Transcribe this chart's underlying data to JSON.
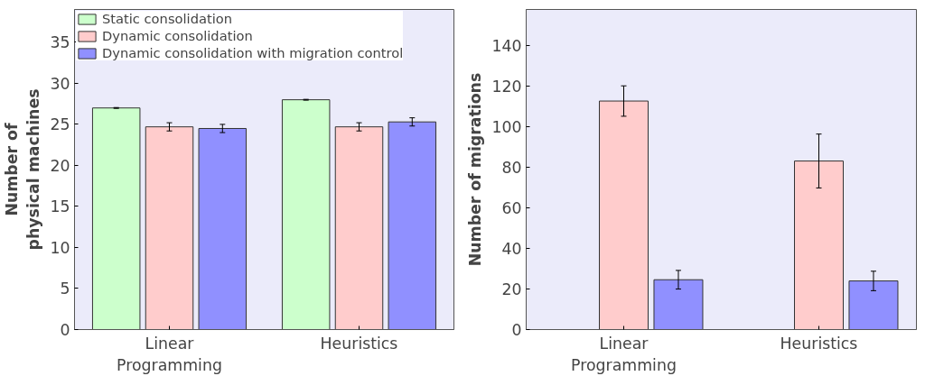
{
  "chart_data": [
    {
      "type": "bar",
      "ylabel": "Number of\nphysical machines",
      "categories": [
        "Linear\nProgramming",
        "Heuristics"
      ],
      "ylim": [
        0,
        39
      ],
      "yticks": [
        0,
        5,
        10,
        15,
        20,
        25,
        30,
        35
      ],
      "grid": false,
      "legend": "top left",
      "series": [
        {
          "name": "Static consolidation",
          "color": "#ccffcc",
          "values": [
            27,
            28
          ],
          "errors": [
            0.05,
            0.05
          ]
        },
        {
          "name": "Dynamic consolidation",
          "color": "#ffcccc",
          "values": [
            24.7,
            24.7
          ],
          "errors": [
            0.5,
            0.5
          ]
        },
        {
          "name": "Dynamic consolidation with migration control",
          "color": "#9090ff",
          "values": [
            24.5,
            25.3
          ],
          "errors": [
            0.5,
            0.5
          ]
        }
      ]
    },
    {
      "type": "bar",
      "ylabel": "Number of migrations",
      "categories": [
        "Linear\nProgramming",
        "Heuristics"
      ],
      "ylim": [
        0,
        158
      ],
      "yticks": [
        0,
        20,
        40,
        60,
        80,
        100,
        120,
        140
      ],
      "grid": false,
      "legend": false,
      "series": [
        {
          "color": "#333333",
          "values": [
            0,
            0
          ]
        },
        {
          "color": "#ffcccc",
          "values": [
            112.8,
            83.2
          ],
          "errors": [
            7.5,
            13.3
          ]
        },
        {
          "color": "#9090ff",
          "values": [
            24.6,
            24
          ],
          "errors": [
            4.6,
            4.8
          ]
        }
      ]
    }
  ]
}
